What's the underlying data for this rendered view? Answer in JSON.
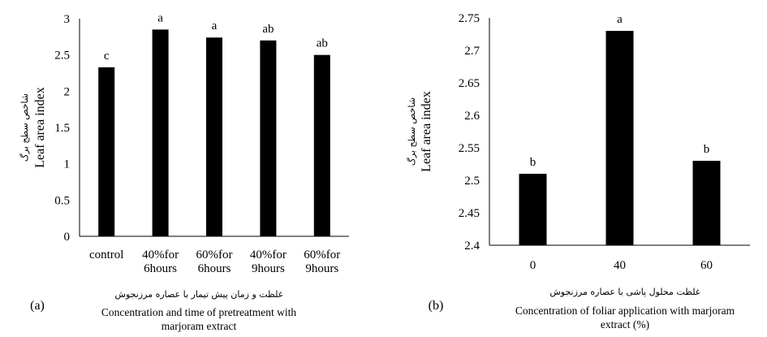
{
  "chart_data": [
    {
      "type": "bar",
      "panel": "(a)",
      "categories": [
        [
          "control"
        ],
        [
          "40%for",
          "6hours"
        ],
        [
          "60%for",
          "6hours"
        ],
        [
          "40%for",
          "9hours"
        ],
        [
          "60%for",
          "9hours"
        ]
      ],
      "values": [
        2.33,
        2.85,
        2.74,
        2.7,
        2.5
      ],
      "significance": [
        "c",
        "a",
        "a",
        "ab",
        "ab"
      ],
      "ylim": [
        0,
        3
      ],
      "yticks": [
        0,
        0.5,
        1,
        1.5,
        2,
        2.5,
        3
      ],
      "ytick_labels": [
        "0",
        "0.5",
        "1",
        "1.5",
        "2",
        "2.5",
        "3"
      ],
      "ylabel": "Leaf area index",
      "ylabel_fa": "شاخص سطح برگ",
      "xlabel_fa": "غلظت و زمان پیش تیمار با عصاره مرزنجوش",
      "xlabel": [
        "Concentration and time of pretreatment with",
        "marjoram extract"
      ],
      "bar_color": "#000000",
      "grid": false
    },
    {
      "type": "bar",
      "panel": "(b)",
      "categories": [
        [
          "0"
        ],
        [
          "40"
        ],
        [
          "60"
        ]
      ],
      "values": [
        2.51,
        2.73,
        2.53
      ],
      "significance": [
        "b",
        "a",
        "b"
      ],
      "ylim": [
        2.4,
        2.75
      ],
      "yticks": [
        2.4,
        2.45,
        2.5,
        2.55,
        2.6,
        2.65,
        2.7,
        2.75
      ],
      "ytick_labels": [
        "2.4",
        "2.45",
        "2.5",
        "2.55",
        "2.6",
        "2.65",
        "2.7",
        "2.75"
      ],
      "ylabel": "Leaf area index",
      "ylabel_fa": "شاخص سطح برگ",
      "xlabel_fa": "غلظت محلول پاشی با عصاره مرزنجوش",
      "xlabel": [
        "Concentration of foliar application with marjoram",
        "extract (%)"
      ],
      "bar_color": "#000000",
      "grid": false
    }
  ]
}
